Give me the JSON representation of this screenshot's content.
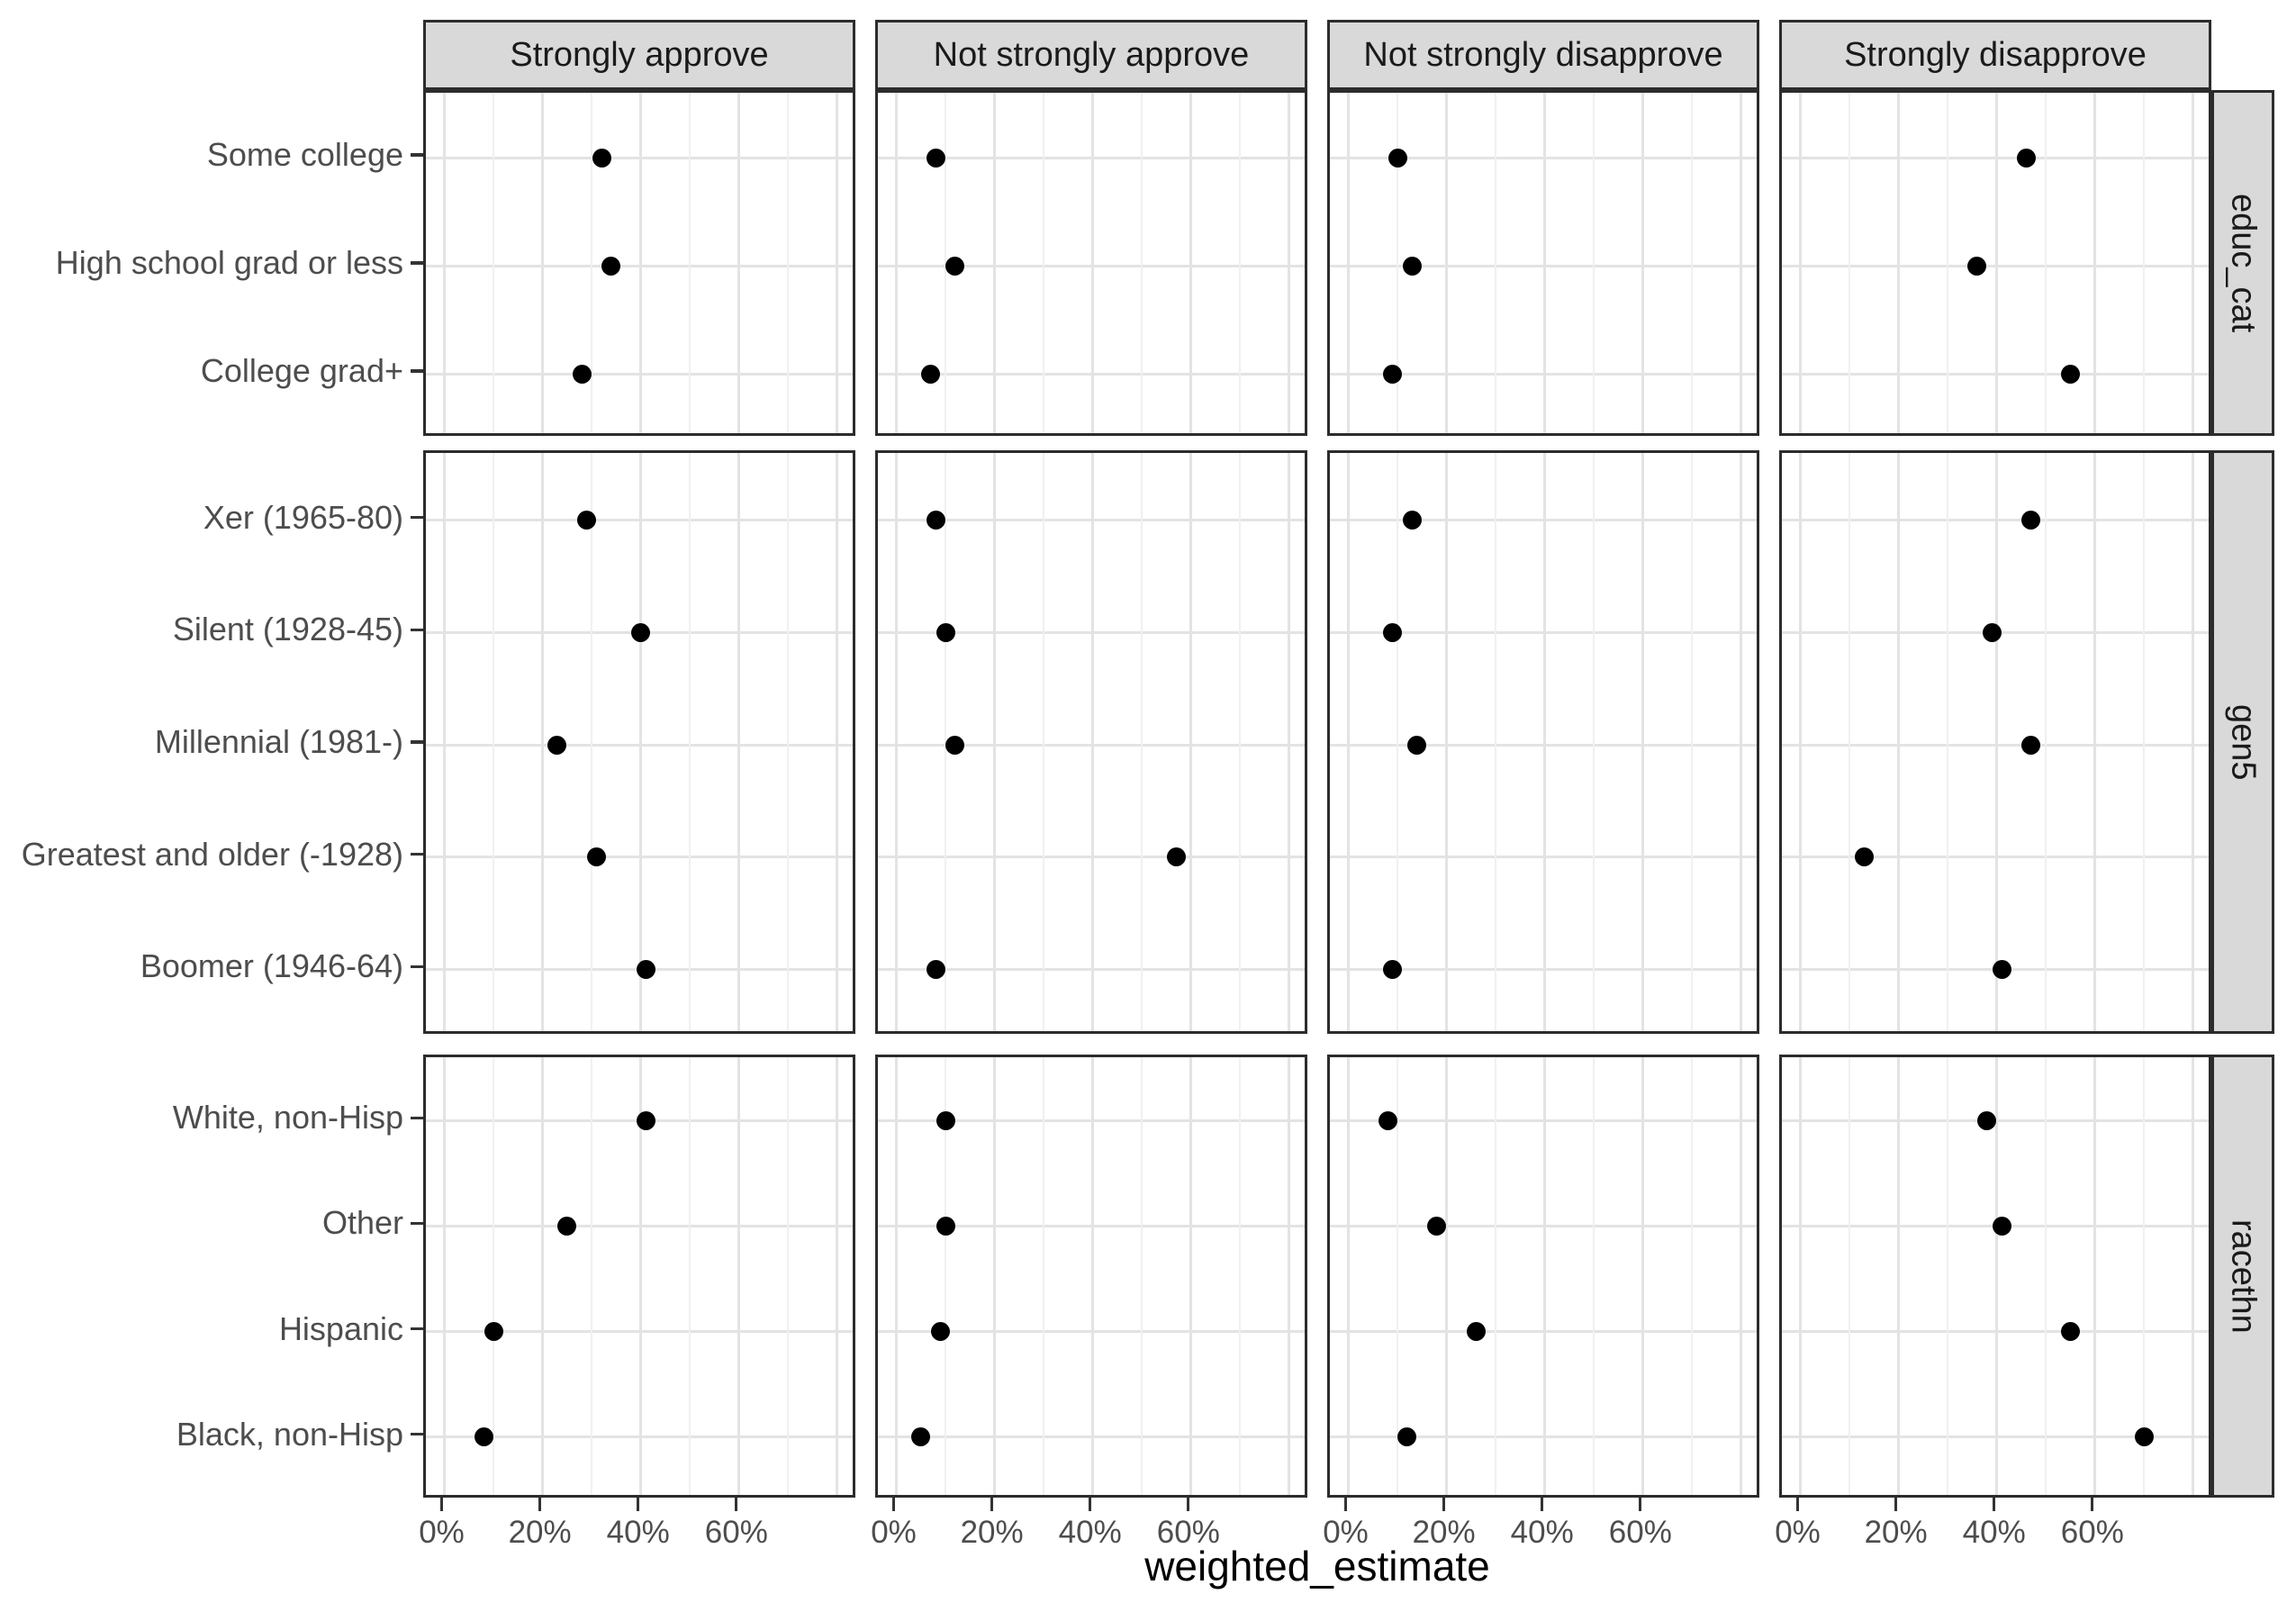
{
  "chart_data": {
    "type": "scatter",
    "title": "",
    "xlabel": "weighted_estimate",
    "ylabel": "",
    "legend": "none",
    "grid": true,
    "xlim_pct": [
      -3.8,
      84.2
    ],
    "x_ticks": [
      {
        "label": "0%",
        "value": 0
      },
      {
        "label": "20%",
        "value": 20
      },
      {
        "label": "40%",
        "value": 40
      },
      {
        "label": "60%",
        "value": 60
      }
    ],
    "x_major_gridlines": [
      0,
      20,
      40,
      60,
      80
    ],
    "x_minor_gridlines": [
      10,
      30,
      50,
      70
    ],
    "facet_columns": [
      "Strongly approve",
      "Not strongly approve",
      "Not strongly disapprove",
      "Strongly disapprove"
    ],
    "facet_rows": [
      {
        "label": "educ_cat",
        "categories": [
          "Some college",
          "High school grad or less",
          "College grad+"
        ],
        "series": [
          {
            "name": "Strongly approve",
            "values": [
              32,
              34,
              28
            ]
          },
          {
            "name": "Not strongly approve",
            "values": [
              8,
              12,
              7
            ]
          },
          {
            "name": "Not strongly disapprove",
            "values": [
              10,
              13,
              9
            ]
          },
          {
            "name": "Strongly disapprove",
            "values": [
              46,
              36,
              55
            ]
          }
        ]
      },
      {
        "label": "gen5",
        "categories": [
          "Xer (1965-80)",
          "Silent (1928-45)",
          "Millennial (1981-)",
          "Greatest and older (-1928)",
          "Boomer (1946-64)"
        ],
        "series": [
          {
            "name": "Strongly approve",
            "values": [
              29,
              40,
              23,
              31,
              41
            ]
          },
          {
            "name": "Not strongly approve",
            "values": [
              8,
              10,
              12,
              57,
              8
            ]
          },
          {
            "name": "Not strongly disapprove",
            "values": [
              13,
              9,
              14,
              null,
              9
            ]
          },
          {
            "name": "Strongly disapprove",
            "values": [
              47,
              39,
              47,
              13,
              41
            ]
          }
        ]
      },
      {
        "label": "racethn",
        "categories": [
          "White, non-Hisp",
          "Other",
          "Hispanic",
          "Black, non-Hisp"
        ],
        "series": [
          {
            "name": "Strongly approve",
            "values": [
              41,
              25,
              10,
              8
            ]
          },
          {
            "name": "Not strongly approve",
            "values": [
              10,
              10,
              9,
              5
            ]
          },
          {
            "name": "Not strongly disapprove",
            "values": [
              8,
              18,
              26,
              12
            ]
          },
          {
            "name": "Strongly disapprove",
            "values": [
              38,
              41,
              55,
              70
            ]
          }
        ]
      }
    ],
    "colors": {
      "point": "#000000",
      "strip_fill": "#d9d9d9",
      "strip_border": "#2c2c2c",
      "panel_border": "#2c2c2c",
      "grid_major": "#e3e3e3",
      "grid_minor": "#f0f0f0",
      "tick_mark": "#333333",
      "tick_label": "#4d4d4d",
      "strip_text": "#1a1a1a",
      "axis_title": "#000000",
      "background": "#ffffff"
    }
  }
}
